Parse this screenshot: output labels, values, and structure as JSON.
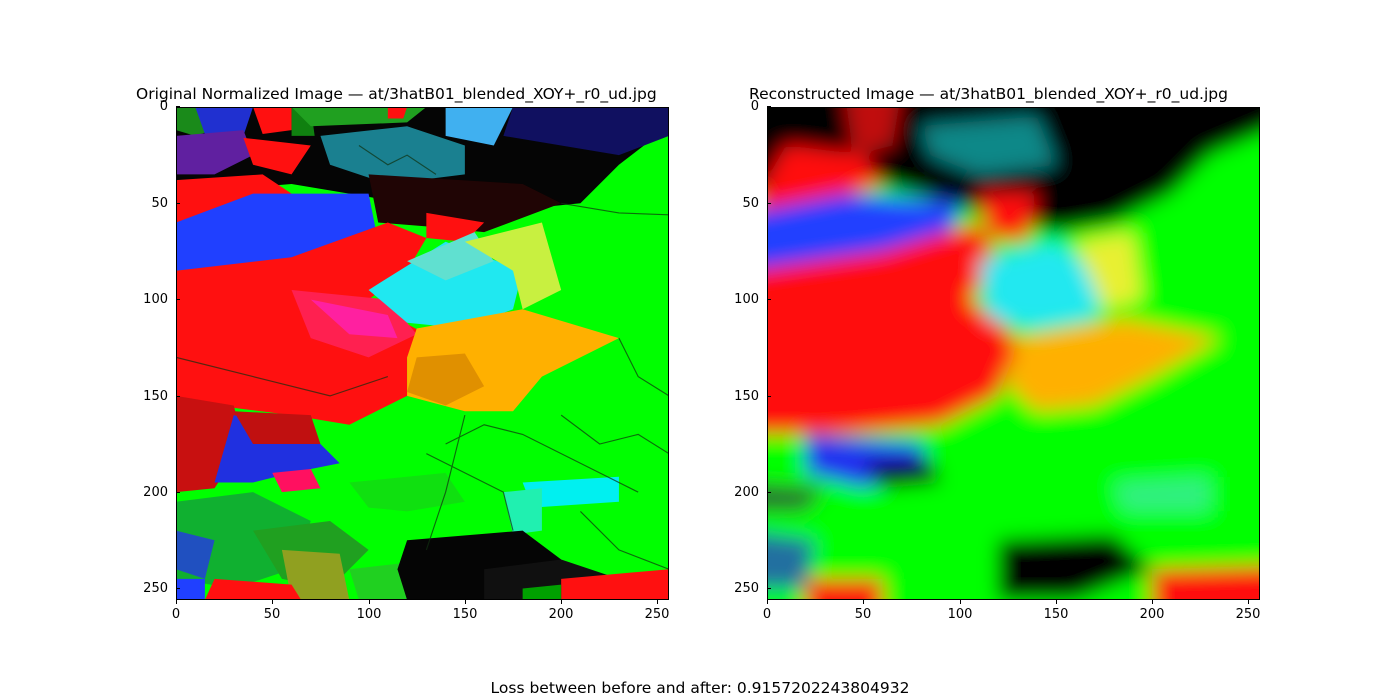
{
  "figure": {
    "left_panel": {
      "title": "Original Normalized Image  —  at/3hatB01_blended_XOY+_r0_ud.jpg",
      "image_description": "sharp voronoi-like mosaic of red, blue, green, cyan, yellow and black grain regions",
      "x_ticks": [
        "0",
        "50",
        "100",
        "150",
        "200",
        "250"
      ],
      "y_ticks": [
        "0",
        "50",
        "100",
        "150",
        "200",
        "250"
      ]
    },
    "right_panel": {
      "title": "Reconstructed Image  —  at/3hatB01_blended_XOY+_r0_ud.jpg",
      "image_description": "blurred reconstruction of the same grain map with soft color regions",
      "x_ticks": [
        "0",
        "50",
        "100",
        "150",
        "200",
        "250"
      ],
      "y_ticks": [
        "0",
        "50",
        "100",
        "150",
        "200",
        "250"
      ]
    },
    "footer_text": "Loss between before and after: 0.9157202243804932"
  },
  "colors": {
    "red": "#ff1010",
    "green": "#00ff00",
    "blue": "#2040ff",
    "cyan": "#20e8f0",
    "yellow": "#ffb000",
    "lime": "#c8f040",
    "black": "#050505",
    "magenta": "#ff20a0"
  }
}
